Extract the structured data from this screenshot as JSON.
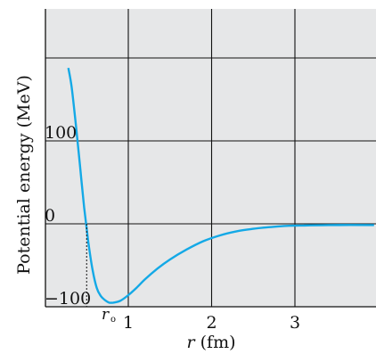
{
  "chart_data": {
    "type": "line",
    "title": "",
    "xlabel_var": "r",
    "xlabel_unit": " (fm)",
    "ylabel": "Potential energy (MeV)",
    "xlim": [
      -1,
      3.95
    ],
    "ylim": [
      -100,
      200
    ],
    "x_ticks": [
      {
        "value": 1,
        "label": "1"
      },
      {
        "value": 2,
        "label": "2"
      },
      {
        "value": 3,
        "label": "3"
      }
    ],
    "y_ticks": [
      {
        "value": 100,
        "label": "100"
      },
      {
        "value": 0,
        "label": "0"
      },
      {
        "value": -100,
        "label": "−100"
      }
    ],
    "grid_x": [
      1,
      2,
      3
    ],
    "grid_y": [
      200,
      100,
      0
    ],
    "annotation": {
      "text": "r",
      "subscript": "o",
      "x": 0.5
    },
    "series": [
      {
        "color": "#14a9e6",
        "x": [
          0.28,
          0.32,
          0.37,
          0.42,
          0.47,
          0.52,
          0.57,
          0.62,
          0.67,
          0.72,
          0.77,
          0.82,
          0.9,
          1.0,
          1.1,
          1.2,
          1.35,
          1.5,
          1.7,
          1.9,
          2.1,
          2.3,
          2.5,
          2.7,
          2.9,
          3.1,
          3.4,
          3.95
        ],
        "y": [
          188,
          165,
          120,
          70,
          20,
          -22,
          -55,
          -77,
          -87,
          -92,
          -95,
          -95,
          -93,
          -86,
          -77,
          -67,
          -54,
          -43,
          -31,
          -21,
          -14,
          -9,
          -6,
          -4,
          -2.5,
          -2,
          -1.5,
          -1.5
        ]
      }
    ]
  }
}
